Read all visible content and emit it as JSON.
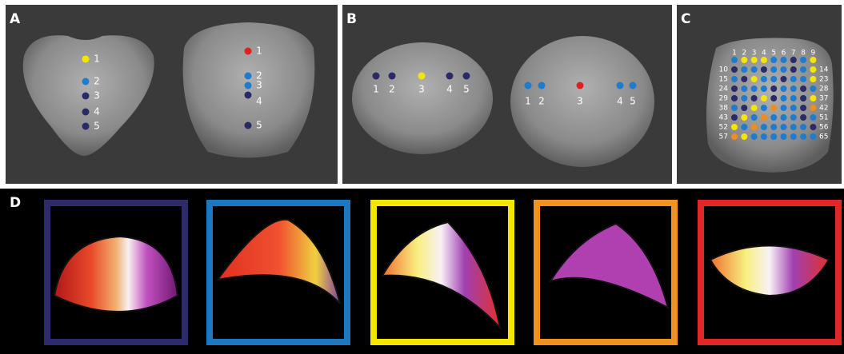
{
  "panel_a": {
    "label": "A",
    "left_dots": [
      "1",
      "2",
      "3",
      "4",
      "5"
    ],
    "right_dots": [
      "1",
      "2",
      "3",
      "4",
      "5"
    ]
  },
  "panel_b": {
    "label": "B",
    "left_dots": [
      "1",
      "2",
      "3",
      "4",
      "5"
    ],
    "right_dots": [
      "1",
      "2",
      "3",
      "4",
      "5"
    ]
  },
  "panel_c": {
    "label": "C",
    "top_numbers": [
      "1",
      "2",
      "3",
      "4",
      "5",
      "6",
      "7",
      "8",
      "9"
    ],
    "left_numbers": [
      "10",
      "15",
      "24",
      "29",
      "38",
      "43",
      "52",
      "57"
    ],
    "right_numbers": [
      "14",
      "23",
      "28",
      "37",
      "42",
      "51",
      "56",
      "65"
    ]
  },
  "panel_d": {
    "label": "D"
  }
}
